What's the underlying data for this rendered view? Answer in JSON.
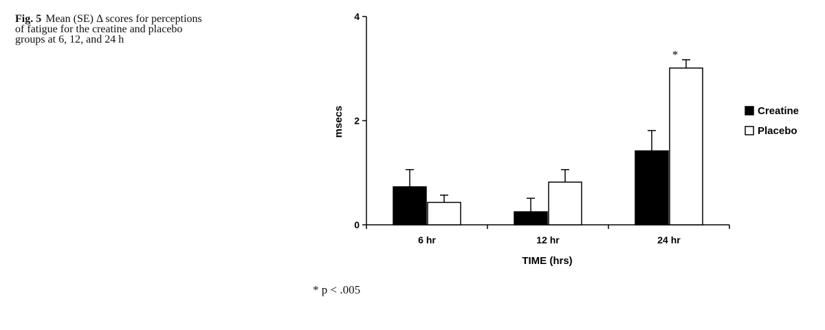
{
  "caption": {
    "label": "Fig. 5",
    "text": "Mean (SE) Δ scores for perceptions of fatigue for the creatine and placebo groups at 6, 12, and 24 h"
  },
  "footnote": "* p < .005",
  "chart_data": {
    "type": "bar",
    "xlabel": "TIME (hrs)",
    "ylabel": "msecs",
    "ylim": [
      0,
      4
    ],
    "yticks": [
      0,
      2,
      4
    ],
    "categories": [
      "6 hr",
      "12 hr",
      "24 hr"
    ],
    "series": [
      {
        "name": "Creatine",
        "values": [
          0.73,
          0.25,
          1.42
        ],
        "errors": [
          0.33,
          0.26,
          0.39
        ],
        "color": "#000000"
      },
      {
        "name": "Placebo",
        "values": [
          0.43,
          0.82,
          3.01
        ],
        "errors": [
          0.14,
          0.24,
          0.16
        ],
        "color": "#ffffff"
      }
    ],
    "annotations": [
      {
        "category": "24 hr",
        "series": "Placebo",
        "text": "*"
      }
    ],
    "legend_position": "right",
    "grid": false
  }
}
